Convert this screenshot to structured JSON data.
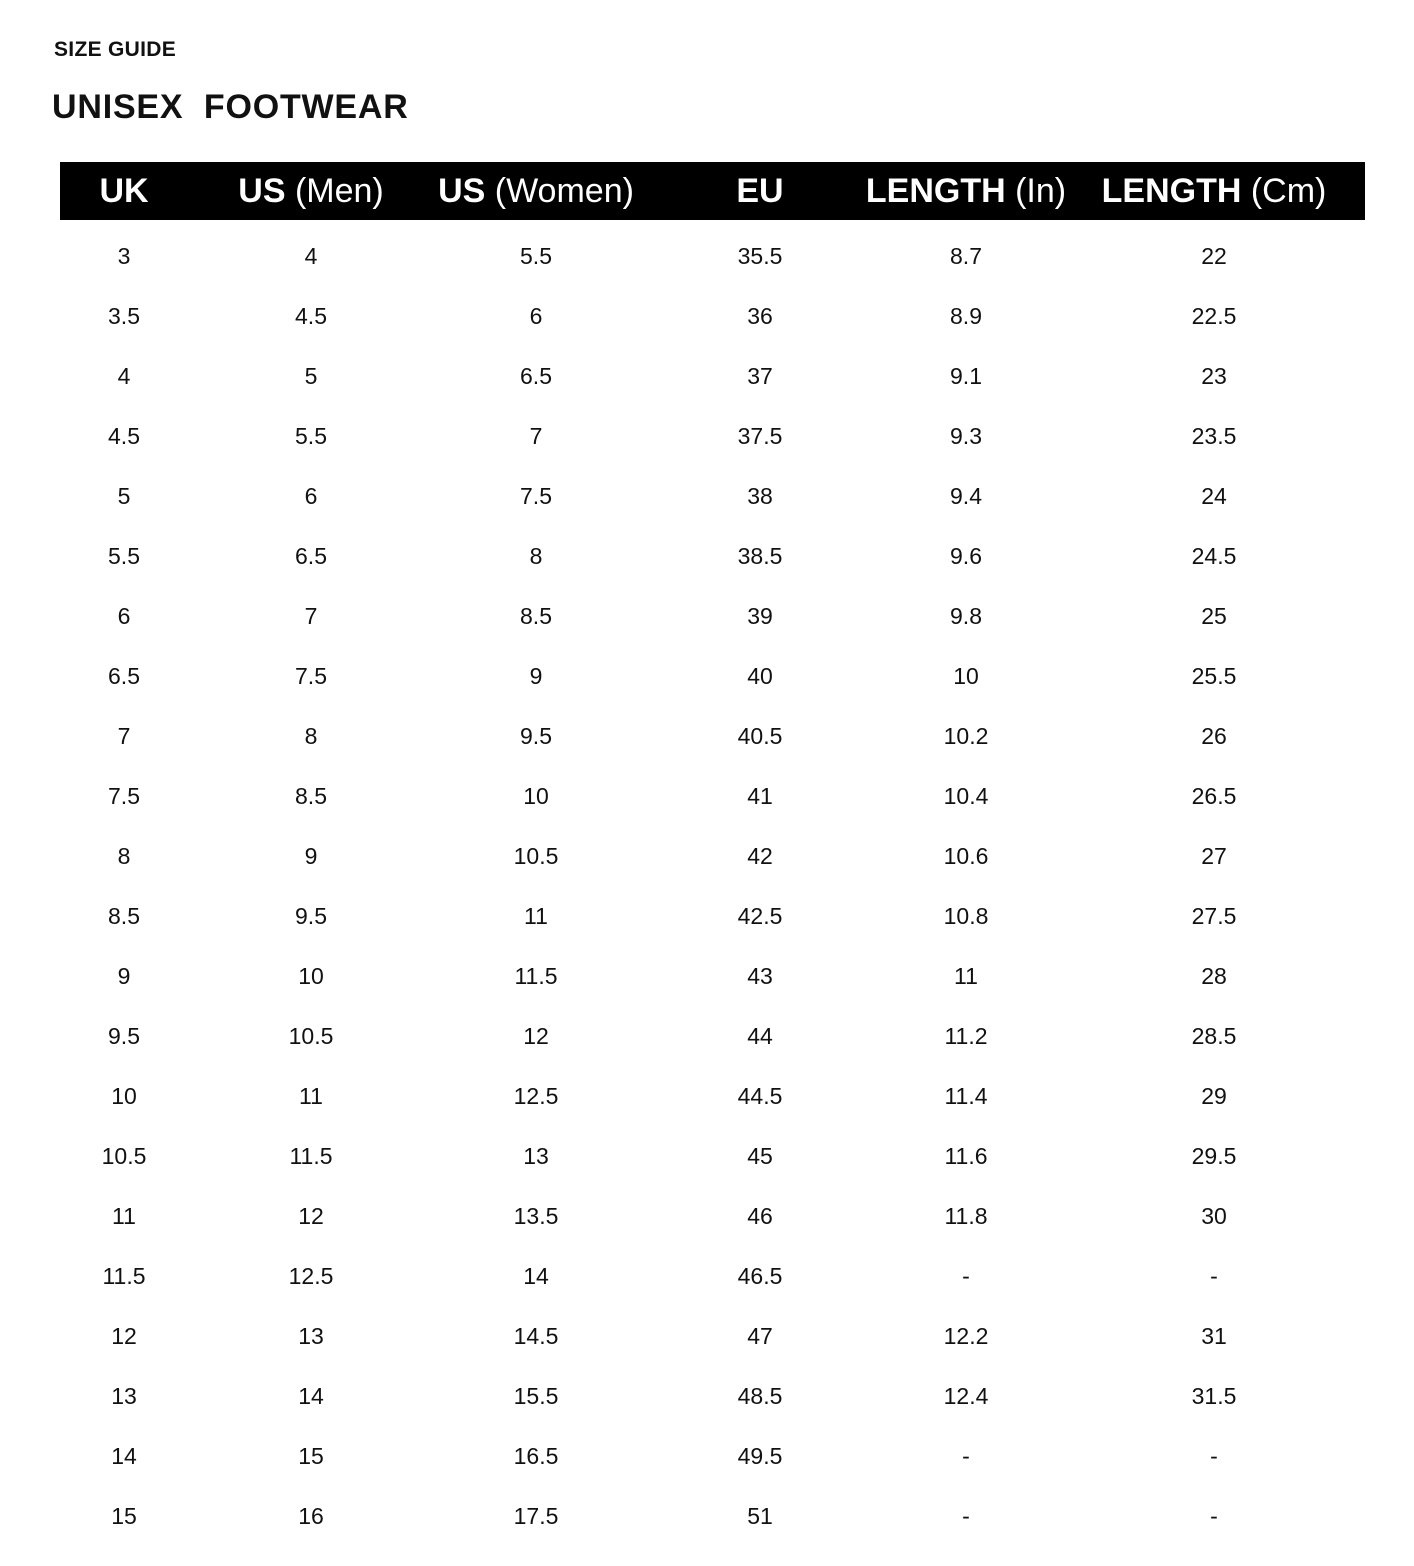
{
  "kicker": "SIZE GUIDE",
  "title": "UNISEX  FOOTWEAR",
  "header_bg": "#000000",
  "columns": [
    {
      "bold": "UK",
      "light": ""
    },
    {
      "bold": "US",
      "light": " (Men)"
    },
    {
      "bold": "US",
      "light": " (Women)"
    },
    {
      "bold": "EU",
      "light": ""
    },
    {
      "bold": "LENGTH",
      "light": " (In)"
    },
    {
      "bold": "LENGTH",
      "light": " (Cm)"
    }
  ],
  "rows": [
    [
      "3",
      "4",
      "5.5",
      "35.5",
      "8.7",
      "22"
    ],
    [
      "3.5",
      "4.5",
      "6",
      "36",
      "8.9",
      "22.5"
    ],
    [
      "4",
      "5",
      "6.5",
      "37",
      "9.1",
      "23"
    ],
    [
      "4.5",
      "5.5",
      "7",
      "37.5",
      "9.3",
      "23.5"
    ],
    [
      "5",
      "6",
      "7.5",
      "38",
      "9.4",
      "24"
    ],
    [
      "5.5",
      "6.5",
      "8",
      "38.5",
      "9.6",
      "24.5"
    ],
    [
      "6",
      "7",
      "8.5",
      "39",
      "9.8",
      "25"
    ],
    [
      "6.5",
      "7.5",
      "9",
      "40",
      "10",
      "25.5"
    ],
    [
      "7",
      "8",
      "9.5",
      "40.5",
      "10.2",
      "26"
    ],
    [
      "7.5",
      "8.5",
      "10",
      "41",
      "10.4",
      "26.5"
    ],
    [
      "8",
      "9",
      "10.5",
      "42",
      "10.6",
      "27"
    ],
    [
      "8.5",
      "9.5",
      "11",
      "42.5",
      "10.8",
      "27.5"
    ],
    [
      "9",
      "10",
      "11.5",
      "43",
      "11",
      "28"
    ],
    [
      "9.5",
      "10.5",
      "12",
      "44",
      "11.2",
      "28.5"
    ],
    [
      "10",
      "11",
      "12.5",
      "44.5",
      "11.4",
      "29"
    ],
    [
      "10.5",
      "11.5",
      "13",
      "45",
      "11.6",
      "29.5"
    ],
    [
      "11",
      "12",
      "13.5",
      "46",
      "11.8",
      "30"
    ],
    [
      "11.5",
      "12.5",
      "14",
      "46.5",
      "-",
      "-"
    ],
    [
      "12",
      "13",
      "14.5",
      "47",
      "12.2",
      "31"
    ],
    [
      "13",
      "14",
      "15.5",
      "48.5",
      "12.4",
      "31.5"
    ],
    [
      "14",
      "15",
      "16.5",
      "49.5",
      "-",
      "-"
    ],
    [
      "15",
      "16",
      "17.5",
      "51",
      "-",
      "-"
    ]
  ]
}
